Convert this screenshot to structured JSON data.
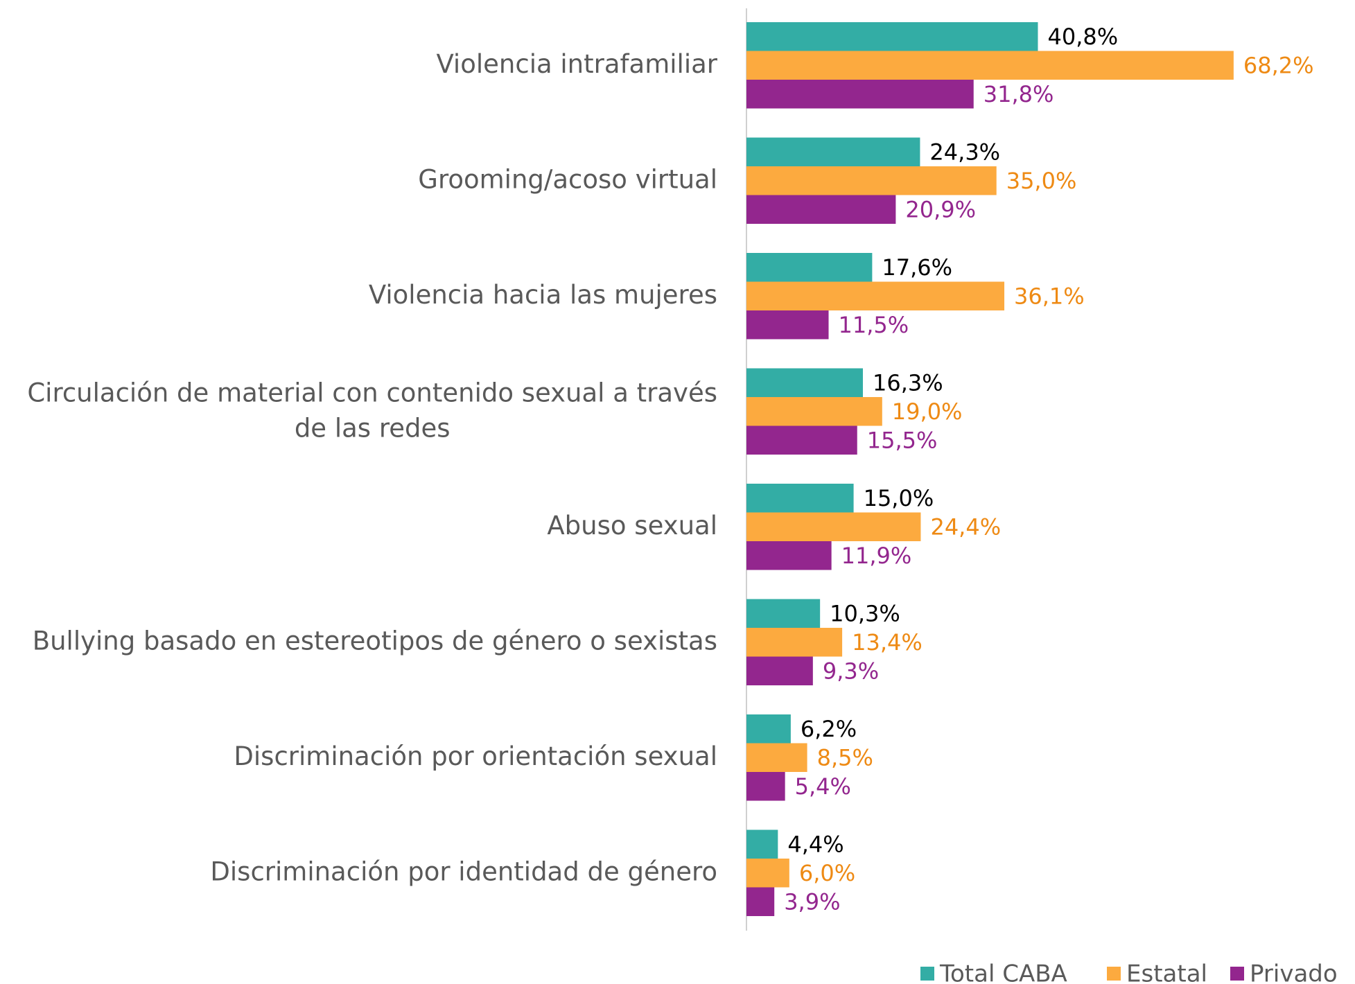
{
  "chart_data": {
    "type": "hbar",
    "categories": [
      "Violencia intrafamiliar",
      "Grooming/acoso virtual",
      "Violencia hacia las mujeres",
      "Circulación de material con contenido sexual a través de las redes",
      "Abuso sexual",
      "Bullying basado en estereotipos de género o sexistas",
      "Discriminación por orientación sexual",
      "Discriminación por identidad de género"
    ],
    "xlim": [
      0,
      85
    ],
    "legend": "bottom-right",
    "series": [
      {
        "name": "Total CABA",
        "color": "#33ada5",
        "label_color": "#000000",
        "values": [
          40.8,
          24.3,
          17.6,
          16.3,
          15.0,
          10.3,
          6.2,
          4.4
        ],
        "value_labels": [
          "40,8%",
          "24,3%",
          "17,6%",
          "16,3%",
          "15,0%",
          "10,3%",
          "6,2%",
          "4,4%"
        ]
      },
      {
        "name": "Estatal",
        "color": "#fcaa3f",
        "label_color": "#ee8a14",
        "values": [
          68.2,
          35.0,
          36.1,
          19.0,
          24.4,
          13.4,
          8.5,
          6.0
        ],
        "value_labels": [
          "68,2%",
          "35,0%",
          "36,1%",
          "19,0%",
          "24,4%",
          "13,4%",
          "8,5%",
          "6,0%"
        ]
      },
      {
        "name": "Privado",
        "color": "#93268e",
        "label_color": "#93268e",
        "values": [
          31.8,
          20.9,
          11.5,
          15.5,
          11.9,
          9.3,
          5.4,
          3.9
        ],
        "value_labels": [
          "31,8%",
          "20,9%",
          "11,5%",
          "15,5%",
          "11,9%",
          "9,3%",
          "5,4%",
          "3,9%"
        ]
      }
    ]
  }
}
